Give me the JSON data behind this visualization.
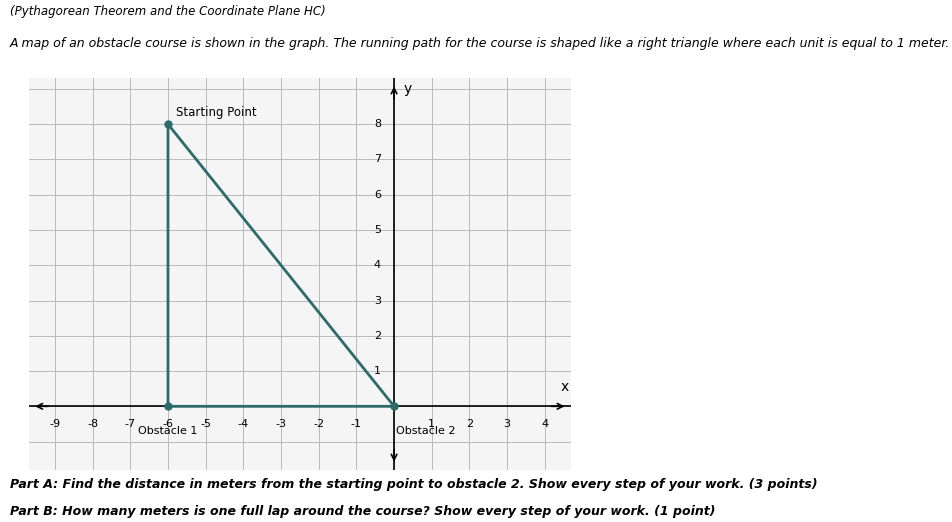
{
  "title_main": "(Pythagorean Theorem and the Coordinate Plane HC)",
  "subtitle": "A map of an obstacle course is shown in the graph. The running path for the course is shaped like a right triangle where each unit is equal to 1 meter.",
  "part_a": "Part A: Find the distance in meters from the starting point to obstacle 2. Show every step of your work. (3 points)",
  "part_b": "Part B: How many meters is one full lap around the course? Show every step of your work. (1 point)",
  "starting_point": [
    -6,
    8
  ],
  "obstacle1": [
    -6,
    0
  ],
  "obstacle2": [
    0,
    0
  ],
  "triangle_color": "#2d6b6b",
  "triangle_linewidth": 2.0,
  "dot_color": "#2d6b6b",
  "dot_size": 5,
  "grid_color": "#b0b0b0",
  "page_bg_color": "#ffffff",
  "graph_bg_color": "#e0e0e0",
  "graph_inner_bg": "#f5f5f5",
  "xlim": [
    -9.7,
    4.7
  ],
  "ylim": [
    -1.8,
    9.3
  ],
  "xticks": [
    -9,
    -8,
    -7,
    -6,
    -5,
    -4,
    -3,
    -2,
    -1,
    0,
    1,
    2,
    3,
    4
  ],
  "yticks": [
    1,
    2,
    3,
    4,
    5,
    6,
    7,
    8
  ],
  "xlabel": "x",
  "ylabel": "y",
  "label_starting_point": "Starting Point",
  "label_obstacle1": "Obstacle 1",
  "label_obstacle2": "Obstacle 2",
  "title_fontsize": 8.5,
  "subtitle_fontsize": 9.0,
  "part_fontsize": 9.0
}
